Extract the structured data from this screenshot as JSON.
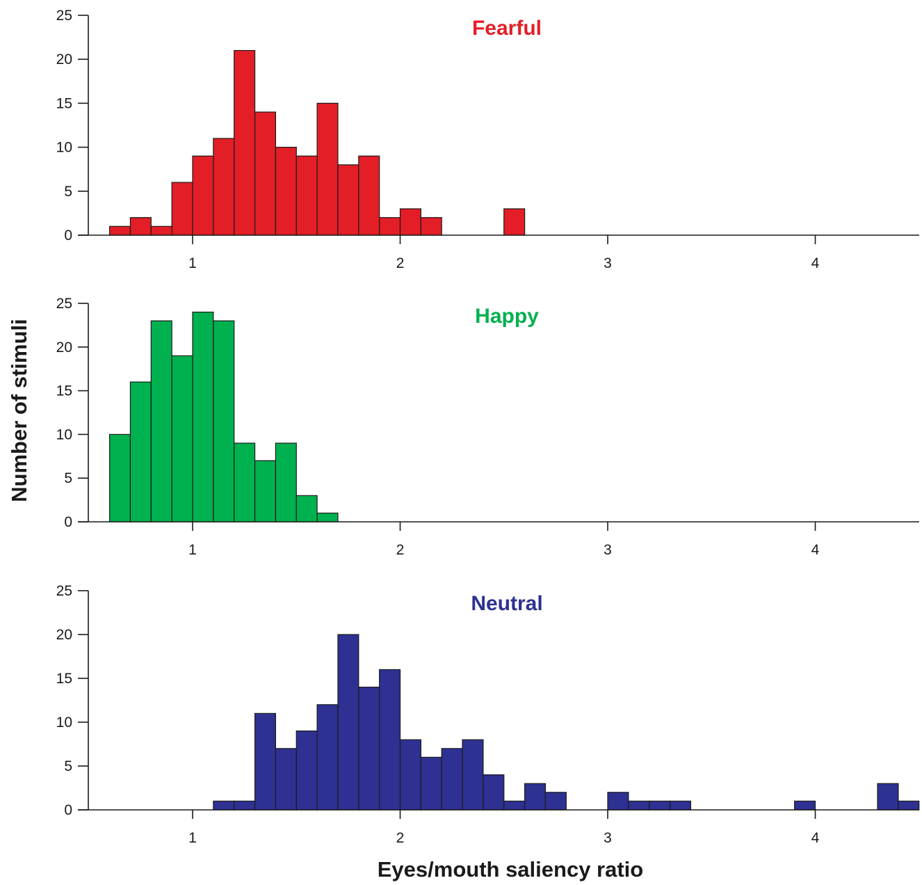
{
  "chart_data": [
    {
      "type": "bar",
      "title": "Fearful",
      "color": "#e31e26",
      "bin_width": 0.1,
      "bin_starts": [
        0.6,
        0.7,
        0.8,
        0.9,
        1.0,
        1.1,
        1.2,
        1.3,
        1.4,
        1.5,
        1.6,
        1.7,
        1.8,
        1.9,
        2.0,
        2.1,
        2.5
      ],
      "values": [
        1,
        2,
        1,
        6,
        9,
        11,
        21,
        14,
        10,
        9,
        15,
        8,
        9,
        2,
        3,
        2,
        3
      ],
      "xlim": [
        0.5,
        4.5
      ],
      "ylim": [
        0,
        25
      ],
      "xticks": [
        "1",
        "2",
        "3",
        "4"
      ],
      "yticks": [
        "0",
        "5",
        "10",
        "15",
        "20",
        "25"
      ]
    },
    {
      "type": "bar",
      "title": "Happy",
      "color": "#00b14f",
      "bin_width": 0.1,
      "bin_starts": [
        0.6,
        0.7,
        0.8,
        0.9,
        1.0,
        1.1,
        1.2,
        1.3,
        1.4,
        1.5,
        1.6
      ],
      "values": [
        10,
        16,
        23,
        19,
        24,
        23,
        9,
        7,
        9,
        3,
        1
      ],
      "xlim": [
        0.5,
        4.5
      ],
      "ylim": [
        0,
        25
      ],
      "xticks": [
        "1",
        "2",
        "3",
        "4"
      ],
      "yticks": [
        "0",
        "5",
        "10",
        "15",
        "20",
        "25"
      ]
    },
    {
      "type": "bar",
      "title": "Neutral",
      "color": "#2e3192",
      "bin_width": 0.1,
      "bin_starts": [
        1.1,
        1.2,
        1.3,
        1.4,
        1.5,
        1.6,
        1.7,
        1.8,
        1.9,
        2.0,
        2.1,
        2.2,
        2.3,
        2.4,
        2.5,
        2.6,
        2.7,
        3.0,
        3.1,
        3.2,
        3.3,
        3.9,
        4.3,
        4.4
      ],
      "values": [
        1,
        1,
        11,
        7,
        9,
        12,
        20,
        14,
        16,
        8,
        6,
        7,
        8,
        4,
        1,
        3,
        2,
        2,
        1,
        1,
        1,
        1,
        3,
        1
      ],
      "xlim": [
        0.5,
        4.5
      ],
      "ylim": [
        0,
        25
      ],
      "xticks": [
        "1",
        "2",
        "3",
        "4"
      ],
      "yticks": [
        "0",
        "5",
        "10",
        "15",
        "20",
        "25"
      ]
    }
  ],
  "axes": {
    "ylabel": "Number of stimuli",
    "xlabel": "Eyes/mouth saliency ratio"
  }
}
